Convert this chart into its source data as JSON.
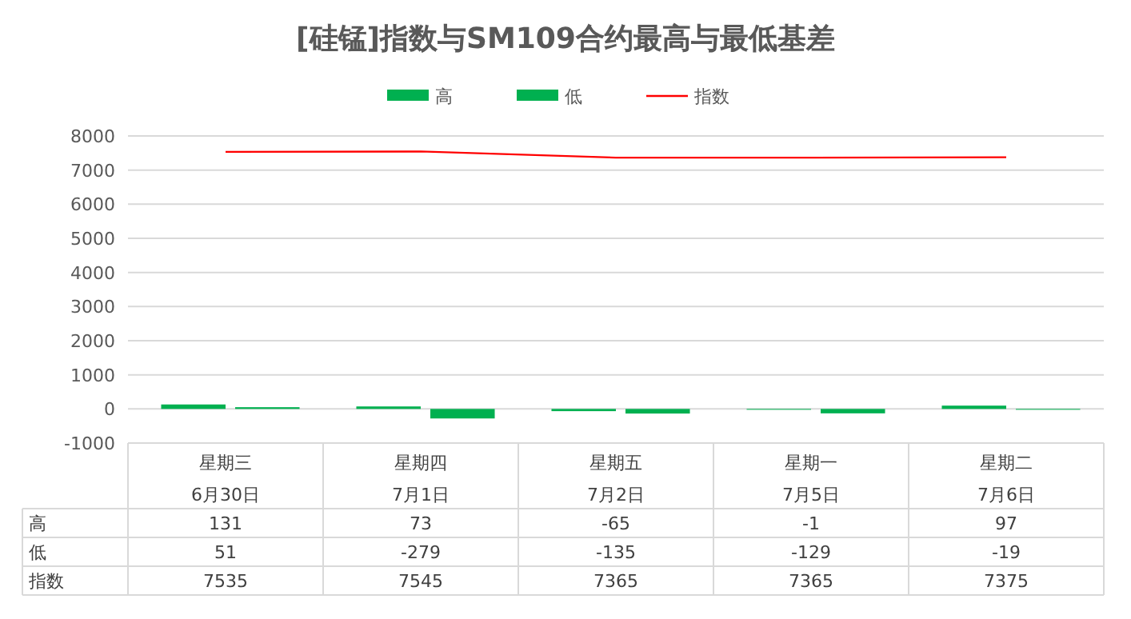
{
  "chart_data": {
    "type": "bar",
    "title": "[硅锰]指数与SM109合约最高与最低基差",
    "categories": [
      "星期三\n6月30日",
      "星期四\n7月1日",
      "星期五\n7月2日",
      "星期一\n7月5日",
      "星期二\n7月6日"
    ],
    "series": [
      {
        "name": "高",
        "color": "#00b050",
        "values": [
          131,
          73,
          -65,
          -1,
          97
        ]
      },
      {
        "name": "低",
        "color": "#00b050",
        "values": [
          51,
          -279,
          -135,
          -129,
          -19
        ]
      },
      {
        "name": "指数",
        "type": "line",
        "color": "#ff0000",
        "values": [
          7535,
          7545,
          7365,
          7365,
          7375
        ]
      }
    ],
    "ylim": [
      -1000,
      8000
    ],
    "yticks": [
      -1000,
      0,
      1000,
      2000,
      3000,
      4000,
      5000,
      6000,
      7000,
      8000
    ],
    "grid": "y",
    "legend": "top",
    "data_labels": true
  }
}
